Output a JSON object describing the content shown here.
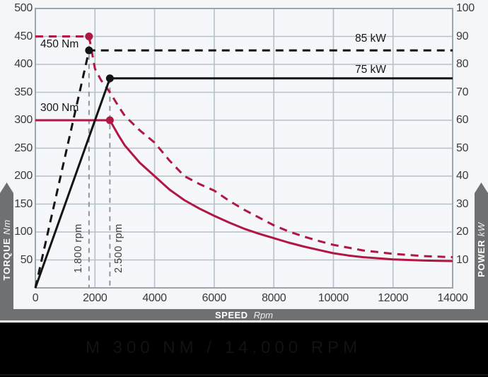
{
  "window": {
    "title": "Motor torque and power curves"
  },
  "colors": {
    "chart_background": "#f4f6f8",
    "plot_background": "#f5f7fa",
    "grid": "#b6c1c8",
    "plot_border": "#9aa7ae",
    "crimson": "#b01743",
    "curve_black": "#141414",
    "guide_gray": "#8f979c",
    "bar_gray": "#6e7071",
    "footer_black": "#000000"
  },
  "chart_data": {
    "type": "line",
    "title": "",
    "grid": true,
    "legend": "none",
    "x_axis": {
      "label": "SPEED",
      "unit": "Rpm",
      "min": 0,
      "max": 14000,
      "tick_step": 2000,
      "ticks": [
        0,
        2000,
        4000,
        6000,
        8000,
        10000,
        12000,
        14000
      ]
    },
    "y_axis_left": {
      "label": "TORQUE",
      "unit": "Nm",
      "min": 0,
      "max": 500,
      "tick_step": 50,
      "ticks": [
        500,
        450,
        400,
        350,
        300,
        250,
        200,
        150,
        100,
        50
      ]
    },
    "y_axis_right": {
      "label": "POWER",
      "unit": "kW",
      "min": 0,
      "max": 100,
      "tick_step": 10,
      "ticks": [
        100,
        90,
        80,
        70,
        60,
        50,
        40,
        30,
        20,
        10
      ]
    },
    "series": [
      {
        "name": "torque-450nm",
        "axis": "left",
        "style": "dashed",
        "color": "#b01743",
        "points": [
          [
            0,
            450
          ],
          [
            1800,
            450
          ],
          [
            2000,
            392
          ],
          [
            2200,
            372
          ],
          [
            2500,
            350
          ],
          [
            2800,
            324
          ],
          [
            3000,
            308
          ],
          [
            3500,
            282
          ],
          [
            4000,
            260
          ],
          [
            4500,
            228
          ],
          [
            5000,
            200
          ],
          [
            5500,
            186
          ],
          [
            6000,
            174
          ],
          [
            6500,
            156
          ],
          [
            7000,
            140
          ],
          [
            7500,
            126
          ],
          [
            8000,
            112
          ],
          [
            8500,
            101
          ],
          [
            9000,
            92
          ],
          [
            9500,
            84
          ],
          [
            10000,
            77
          ],
          [
            10500,
            72
          ],
          [
            11000,
            67
          ],
          [
            11500,
            64
          ],
          [
            12000,
            61
          ],
          [
            12500,
            59
          ],
          [
            13000,
            57
          ],
          [
            13500,
            56
          ],
          [
            14000,
            55
          ]
        ]
      },
      {
        "name": "torque-300nm",
        "axis": "left",
        "style": "solid",
        "color": "#b01743",
        "points": [
          [
            0,
            300
          ],
          [
            2500,
            300
          ],
          [
            2800,
            272
          ],
          [
            3000,
            255
          ],
          [
            3500,
            224
          ],
          [
            4000,
            200
          ],
          [
            4500,
            176
          ],
          [
            5000,
            157
          ],
          [
            5500,
            142
          ],
          [
            6000,
            129
          ],
          [
            6500,
            117
          ],
          [
            7000,
            106
          ],
          [
            7500,
            97
          ],
          [
            8000,
            89
          ],
          [
            8500,
            81
          ],
          [
            9000,
            74
          ],
          [
            9500,
            68
          ],
          [
            10000,
            62
          ],
          [
            10500,
            58
          ],
          [
            11000,
            55
          ],
          [
            11500,
            53
          ],
          [
            12000,
            51
          ],
          [
            12500,
            50
          ],
          [
            13000,
            49
          ],
          [
            13500,
            48.5
          ],
          [
            14000,
            48
          ]
        ]
      },
      {
        "name": "power-85kw",
        "axis": "right",
        "style": "dashed",
        "color": "#141414",
        "points": [
          [
            0,
            0
          ],
          [
            1800,
            85
          ],
          [
            14000,
            85
          ]
        ]
      },
      {
        "name": "power-75kw",
        "axis": "right",
        "style": "solid",
        "color": "#141414",
        "points": [
          [
            0,
            0
          ],
          [
            2500,
            75
          ],
          [
            14000,
            75
          ]
        ]
      }
    ],
    "markers": [
      {
        "rpm": 1800,
        "value": 450,
        "axis": "left",
        "color": "#b01743"
      },
      {
        "rpm": 2500,
        "value": 300,
        "axis": "left",
        "color": "#b01743"
      },
      {
        "rpm": 1800,
        "value": 85,
        "axis": "right",
        "color": "#141414"
      },
      {
        "rpm": 2500,
        "value": 75,
        "axis": "right",
        "color": "#141414"
      }
    ],
    "guides": [
      {
        "rpm": 1800,
        "from_value": 450
      },
      {
        "rpm": 2500,
        "from_value": 375
      }
    ],
    "annotations": {
      "torque_450": "450 Nm",
      "torque_300": "300 Nm",
      "power_85": "85 kW",
      "power_75": "75 kW",
      "rpm_1800": "1.800 rpm",
      "rpm_2500": "2.500 rpm"
    }
  },
  "axes_bars": {
    "torque": {
      "title": "TORQUE",
      "unit": "Nm"
    },
    "power": {
      "title": "POWER",
      "unit": "kW"
    },
    "speed": {
      "title": "SPEED",
      "unit": "Rpm"
    }
  },
  "footer": {
    "model_title": "M 300 NM / 14.000 RPM"
  }
}
